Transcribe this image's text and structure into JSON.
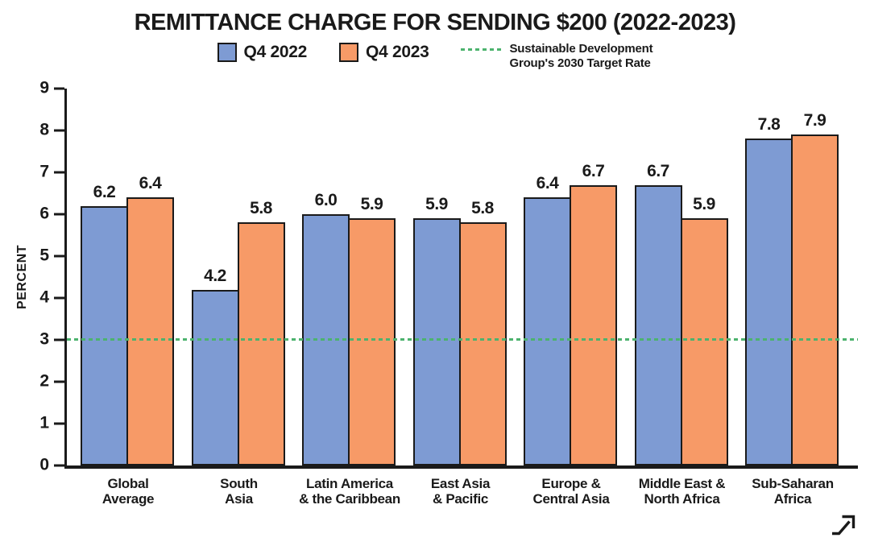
{
  "title": "REMITTANCE CHARGE FOR SENDING $200 (2022-2023)",
  "legend": {
    "items": [
      {
        "label": "Q4 2022",
        "color": "#7E9BD3"
      },
      {
        "label": "Q4 2023",
        "color": "#F79A67"
      }
    ],
    "target": {
      "label": "Sustainable Development\nGroup's 2030 Target Rate",
      "color": "#4CB36E"
    }
  },
  "icons": {
    "bottom_right": "trending-up-arrow"
  },
  "colors": {
    "text": "#1A1A1A",
    "axis": "#1A1A1A",
    "background": "#FFFFFF"
  },
  "chart_data": {
    "type": "bar",
    "title": "REMITTANCE CHARGE FOR SENDING $200 (2022-2023)",
    "categories": [
      "Global\nAverage",
      "South\nAsia",
      "Latin America\n& the Caribbean",
      "East Asia\n& Pacific",
      "Europe &\nCentral Asia",
      "Middle East &\nNorth Africa",
      "Sub-Saharan\nAfrica"
    ],
    "series": [
      {
        "name": "Q4 2022",
        "color": "#7E9BD3",
        "values": [
          6.2,
          4.2,
          6.0,
          5.9,
          6.4,
          6.7,
          7.8
        ]
      },
      {
        "name": "Q4 2023",
        "color": "#F79A67",
        "values": [
          6.4,
          5.8,
          5.9,
          5.8,
          6.7,
          5.9,
          7.9
        ]
      }
    ],
    "xlabel": "",
    "ylabel": "PERCENT",
    "ylim": [
      0,
      9
    ],
    "yticks": [
      0,
      1,
      2,
      3,
      4,
      5,
      6,
      7,
      8,
      9
    ],
    "target_line": {
      "value": 3,
      "label": "Sustainable Development Group's 2030 Target Rate",
      "color": "#4CB36E",
      "style": "dashed"
    },
    "grid": false,
    "legend_position": "top",
    "value_labels": true
  }
}
